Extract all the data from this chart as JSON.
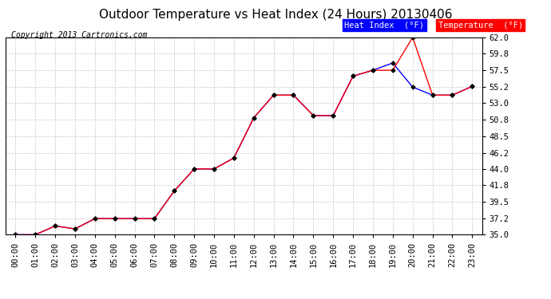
{
  "title": "Outdoor Temperature vs Heat Index (24 Hours) 20130406",
  "copyright": "Copyright 2013 Cartronics.com",
  "background_color": "#ffffff",
  "plot_bg_color": "#ffffff",
  "grid_color": "#c8c8c8",
  "hours": [
    0,
    1,
    2,
    3,
    4,
    5,
    6,
    7,
    8,
    9,
    10,
    11,
    12,
    13,
    14,
    15,
    16,
    17,
    18,
    19,
    20,
    21,
    22,
    23
  ],
  "temperature": [
    35.0,
    35.0,
    36.2,
    35.8,
    37.2,
    37.2,
    37.2,
    37.2,
    41.0,
    44.0,
    44.0,
    45.5,
    51.0,
    54.1,
    54.1,
    51.3,
    51.3,
    56.7,
    57.5,
    57.5,
    62.0,
    54.1,
    54.1,
    55.3
  ],
  "heat_index": [
    35.0,
    35.0,
    36.2,
    35.8,
    37.2,
    37.2,
    37.2,
    37.2,
    41.0,
    44.0,
    44.0,
    45.5,
    51.0,
    54.1,
    54.1,
    51.3,
    51.3,
    56.7,
    57.5,
    58.5,
    55.2,
    54.1,
    54.1,
    55.3
  ],
  "temp_color": "#ff0000",
  "heat_index_color": "#0000ff",
  "marker_color": "#000000",
  "ylim_min": 35.0,
  "ylim_max": 62.0,
  "yticks": [
    35.0,
    37.2,
    39.5,
    41.8,
    44.0,
    46.2,
    48.5,
    50.8,
    53.0,
    55.2,
    57.5,
    59.8,
    62.0
  ],
  "title_fontsize": 11,
  "tick_fontsize": 7.5,
  "copyright_fontsize": 7,
  "legend_fontsize": 7.5
}
